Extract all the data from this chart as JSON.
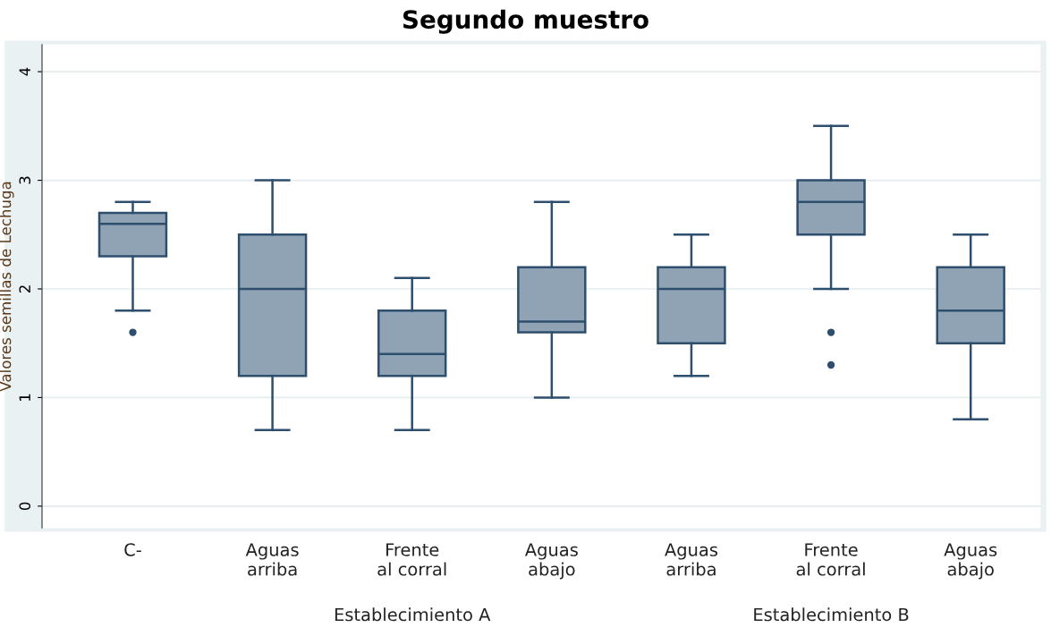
{
  "chart_data": {
    "type": "box",
    "title": "Segundo muestro",
    "ylabel": "Valores semillas de Lechuga",
    "categories": [
      "C-",
      "Aguas\narriba",
      "Frente\nal corral",
      "Aguas\nabajo",
      "Aguas\narriba",
      "Frente\nal corral",
      "Aguas\nabajo"
    ],
    "boxes": [
      {
        "low": 1.8,
        "q1": 2.3,
        "median": 2.6,
        "q3": 2.7,
        "high": 2.8,
        "outliers": [
          1.6
        ]
      },
      {
        "low": 0.7,
        "q1": 1.2,
        "median": 2.0,
        "q3": 2.5,
        "high": 3.0
      },
      {
        "low": 0.7,
        "q1": 1.2,
        "median": 1.4,
        "q3": 1.8,
        "high": 2.1
      },
      {
        "low": 1.0,
        "q1": 1.6,
        "median": 1.7,
        "q3": 2.2,
        "high": 2.8
      },
      {
        "low": 1.2,
        "q1": 1.5,
        "median": 2.0,
        "q3": 2.2,
        "high": 2.5
      },
      {
        "low": 2.0,
        "q1": 2.5,
        "median": 2.8,
        "q3": 3.0,
        "high": 3.5,
        "outliers": [
          1.6,
          1.3
        ]
      },
      {
        "low": 0.8,
        "q1": 1.5,
        "median": 1.8,
        "q3": 2.2,
        "high": 2.5
      }
    ],
    "color": "#8fa3b5",
    "ylim": [
      -0.2,
      4.25
    ],
    "yticks": [
      0,
      1,
      2,
      3,
      4
    ],
    "grid": "y",
    "annotations": [
      "Establecimiento A",
      "Establecimiento B"
    ]
  }
}
